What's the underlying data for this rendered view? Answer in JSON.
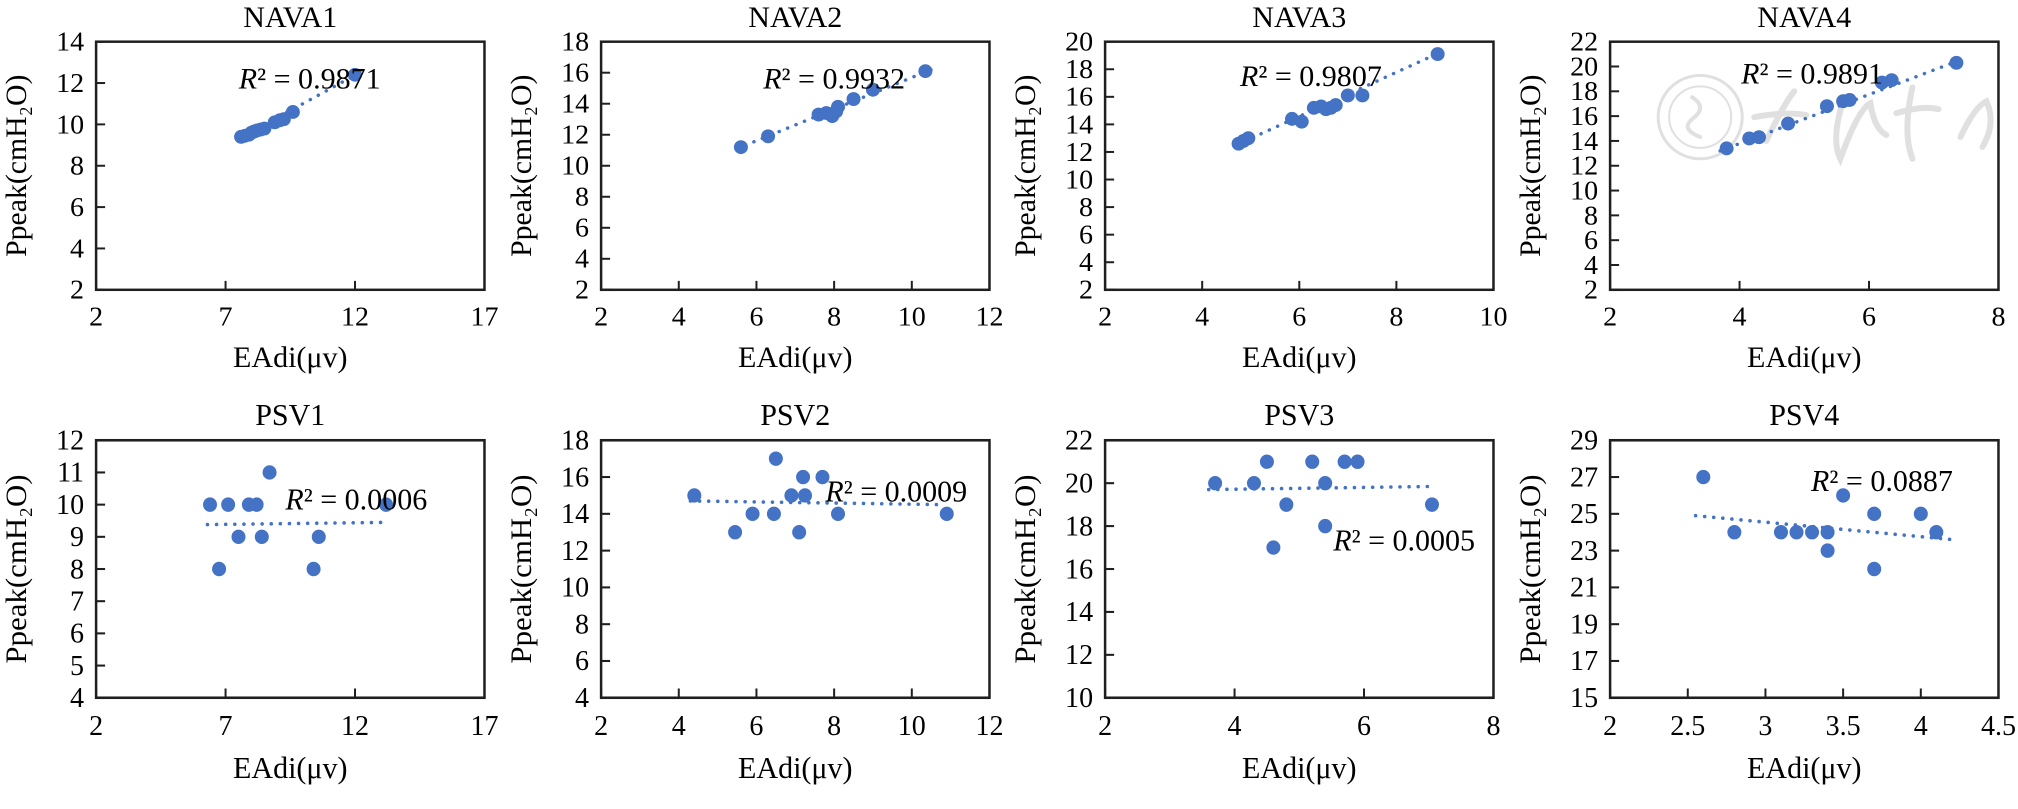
{
  "figure": {
    "marker_color": "#4472C4",
    "trend_color": "#4472C4",
    "axis_color": "#1f1f1f",
    "text_color": "#000000",
    "background": "#ffffff"
  },
  "watermark": {
    "panel": "NAVA4",
    "text": "中华医学会",
    "style": "faint light-gray seal emblem with calligraphic characters"
  },
  "chart_data": [
    {
      "name": "NAVA1",
      "type": "scatter",
      "title": "NAVA1",
      "xlabel": "EAdi(μv)",
      "ylabel": "Ppeak(cmH₂O)",
      "xlim": [
        2,
        17
      ],
      "ylim": [
        2,
        14
      ],
      "x_ticks": [
        2,
        7,
        12,
        17
      ],
      "y_ticks": [
        2,
        4,
        6,
        8,
        10,
        12,
        14
      ],
      "r2_label": "R² = 0.9871",
      "r2_pos": [
        0.55,
        0.1
      ],
      "points": [
        [
          7.6,
          9.4
        ],
        [
          7.75,
          9.45
        ],
        [
          7.9,
          9.5
        ],
        [
          8.0,
          9.6
        ],
        [
          8.1,
          9.65
        ],
        [
          8.2,
          9.7
        ],
        [
          8.35,
          9.75
        ],
        [
          8.5,
          9.8
        ],
        [
          8.9,
          10.1
        ],
        [
          9.1,
          10.2
        ],
        [
          9.25,
          10.25
        ],
        [
          9.6,
          10.6
        ],
        [
          12.0,
          12.4
        ]
      ],
      "trend": [
        [
          7.5,
          9.3
        ],
        [
          12.1,
          12.45
        ]
      ],
      "has_watermark": false
    },
    {
      "name": "NAVA2",
      "type": "scatter",
      "title": "NAVA2",
      "xlabel": "EAdi(μv)",
      "ylabel": "Ppeak(cmH₂O)",
      "xlim": [
        2,
        12
      ],
      "ylim": [
        2,
        18
      ],
      "x_ticks": [
        2,
        4,
        6,
        8,
        10,
        12
      ],
      "y_ticks": [
        2,
        4,
        6,
        8,
        10,
        12,
        14,
        16,
        18
      ],
      "r2_label": "R² = 0.9932",
      "r2_pos": [
        0.6,
        0.1
      ],
      "points": [
        [
          5.6,
          11.2
        ],
        [
          6.3,
          11.9
        ],
        [
          7.6,
          13.3
        ],
        [
          7.8,
          13.4
        ],
        [
          7.95,
          13.2
        ],
        [
          8.05,
          13.5
        ],
        [
          8.1,
          13.8
        ],
        [
          8.5,
          14.3
        ],
        [
          9.0,
          14.9
        ],
        [
          10.35,
          16.1
        ]
      ],
      "trend": [
        [
          5.5,
          11.1
        ],
        [
          10.5,
          16.2
        ]
      ],
      "has_watermark": false
    },
    {
      "name": "NAVA3",
      "type": "scatter",
      "title": "NAVA3",
      "xlabel": "EAdi(μv)",
      "ylabel": "Ppeak(cmH₂O)",
      "xlim": [
        2,
        10
      ],
      "ylim": [
        2,
        20
      ],
      "x_ticks": [
        2,
        4,
        6,
        8,
        10
      ],
      "y_ticks": [
        2,
        4,
        6,
        8,
        10,
        12,
        14,
        16,
        18,
        20
      ],
      "r2_label": "R² = 0.9807",
      "r2_pos": [
        0.53,
        0.09
      ],
      "points": [
        [
          4.75,
          12.6
        ],
        [
          4.85,
          12.8
        ],
        [
          4.95,
          13.0
        ],
        [
          5.85,
          14.4
        ],
        [
          6.05,
          14.2
        ],
        [
          6.3,
          15.2
        ],
        [
          6.45,
          15.3
        ],
        [
          6.55,
          15.1
        ],
        [
          6.65,
          15.2
        ],
        [
          6.75,
          15.4
        ],
        [
          7.0,
          16.1
        ],
        [
          7.3,
          16.1
        ],
        [
          8.85,
          19.1
        ]
      ],
      "trend": [
        [
          4.7,
          12.5
        ],
        [
          8.95,
          19.3
        ]
      ],
      "has_watermark": false
    },
    {
      "name": "NAVA4",
      "type": "scatter",
      "title": "NAVA4",
      "xlabel": "EAdi(μv)",
      "ylabel": "Ppeak(cmH₂O)",
      "xlim": [
        2,
        8
      ],
      "ylim": [
        2,
        22
      ],
      "x_ticks": [
        2,
        4,
        6,
        8
      ],
      "y_ticks": [
        2,
        4,
        6,
        8,
        10,
        12,
        14,
        16,
        18,
        20,
        22
      ],
      "r2_label": "R² = 0.9891",
      "r2_pos": [
        0.52,
        0.08
      ],
      "points": [
        [
          3.8,
          13.4
        ],
        [
          4.15,
          14.2
        ],
        [
          4.3,
          14.3
        ],
        [
          4.75,
          15.4
        ],
        [
          5.35,
          16.8
        ],
        [
          5.6,
          17.2
        ],
        [
          5.7,
          17.3
        ],
        [
          6.2,
          18.7
        ],
        [
          6.35,
          18.9
        ],
        [
          7.35,
          20.3
        ]
      ],
      "trend": [
        [
          3.7,
          13.2
        ],
        [
          7.5,
          20.7
        ]
      ],
      "has_watermark": true
    },
    {
      "name": "PSV1",
      "type": "scatter",
      "title": "PSV1",
      "xlabel": "EAdi(μv)",
      "ylabel": "Ppeak(cmH₂O)",
      "xlim": [
        2,
        17
      ],
      "ylim": [
        4,
        12
      ],
      "x_ticks": [
        2,
        7,
        12,
        17
      ],
      "y_ticks": [
        4,
        5,
        6,
        7,
        8,
        9,
        10,
        11,
        12
      ],
      "r2_label": "R² = 0.0006",
      "r2_pos": [
        0.67,
        0.18
      ],
      "points": [
        [
          6.4,
          10
        ],
        [
          7.1,
          10
        ],
        [
          7.9,
          10
        ],
        [
          8.2,
          10
        ],
        [
          8.7,
          11
        ],
        [
          7.5,
          9
        ],
        [
          8.4,
          9
        ],
        [
          10.6,
          9
        ],
        [
          6.75,
          8
        ],
        [
          10.4,
          8
        ],
        [
          13.2,
          10
        ]
      ],
      "trend": [
        [
          6.3,
          9.38
        ],
        [
          13.3,
          9.45
        ]
      ],
      "has_watermark": false
    },
    {
      "name": "PSV2",
      "type": "scatter",
      "title": "PSV2",
      "xlabel": "EAdi(μv)",
      "ylabel": "Ppeak(cmH₂O)",
      "xlim": [
        2,
        12
      ],
      "ylim": [
        4,
        18
      ],
      "x_ticks": [
        2,
        4,
        6,
        8,
        10,
        12
      ],
      "y_ticks": [
        4,
        6,
        8,
        10,
        12,
        14,
        16,
        18
      ],
      "r2_label": "R² = 0.0009",
      "r2_pos": [
        0.76,
        0.15
      ],
      "points": [
        [
          4.4,
          15
        ],
        [
          6.5,
          17
        ],
        [
          7.2,
          16
        ],
        [
          7.7,
          16
        ],
        [
          6.9,
          15
        ],
        [
          7.25,
          15
        ],
        [
          5.9,
          14
        ],
        [
          6.45,
          14
        ],
        [
          8.1,
          14
        ],
        [
          10.9,
          14
        ],
        [
          5.45,
          13
        ],
        [
          7.1,
          13
        ]
      ],
      "trend": [
        [
          4.3,
          14.7
        ],
        [
          10.8,
          14.5
        ]
      ],
      "has_watermark": false
    },
    {
      "name": "PSV3",
      "type": "scatter",
      "title": "PSV3",
      "xlabel": "EAdi(μv)",
      "ylabel": "Ppeak(cmH₂O)",
      "xlim": [
        2,
        8
      ],
      "ylim": [
        10,
        22
      ],
      "x_ticks": [
        2,
        4,
        6,
        8
      ],
      "y_ticks": [
        10,
        12,
        14,
        16,
        18,
        20,
        22
      ],
      "r2_label": "R² = 0.0005",
      "r2_pos": [
        0.77,
        0.34
      ],
      "points": [
        [
          4.5,
          21
        ],
        [
          5.2,
          21
        ],
        [
          5.7,
          21
        ],
        [
          5.9,
          21
        ],
        [
          3.7,
          20
        ],
        [
          4.3,
          20
        ],
        [
          5.4,
          20
        ],
        [
          4.8,
          19
        ],
        [
          7.05,
          19
        ],
        [
          5.4,
          18
        ],
        [
          4.6,
          17
        ]
      ],
      "trend": [
        [
          3.6,
          19.7
        ],
        [
          7.1,
          19.85
        ]
      ],
      "has_watermark": false
    },
    {
      "name": "PSV4",
      "type": "scatter",
      "title": "PSV4",
      "xlabel": "EAdi(μv)",
      "ylabel": "Ppeak(cmH₂O)",
      "xlim": [
        2,
        4.5
      ],
      "ylim": [
        15,
        29
      ],
      "x_ticks": [
        2,
        2.5,
        3,
        3.5,
        4,
        4.5
      ],
      "y_ticks": [
        15,
        17,
        19,
        21,
        23,
        25,
        27,
        29
      ],
      "r2_label": "R² = 0.0887",
      "r2_pos": [
        0.7,
        0.11
      ],
      "points": [
        [
          2.6,
          27
        ],
        [
          3.5,
          26
        ],
        [
          3.7,
          25
        ],
        [
          4.0,
          25
        ],
        [
          2.8,
          24
        ],
        [
          3.1,
          24
        ],
        [
          3.2,
          24
        ],
        [
          3.3,
          24
        ],
        [
          3.4,
          24
        ],
        [
          4.1,
          24
        ],
        [
          3.4,
          23
        ],
        [
          3.7,
          22
        ]
      ],
      "trend": [
        [
          2.55,
          24.9
        ],
        [
          4.2,
          23.6
        ]
      ],
      "has_watermark": false
    }
  ]
}
